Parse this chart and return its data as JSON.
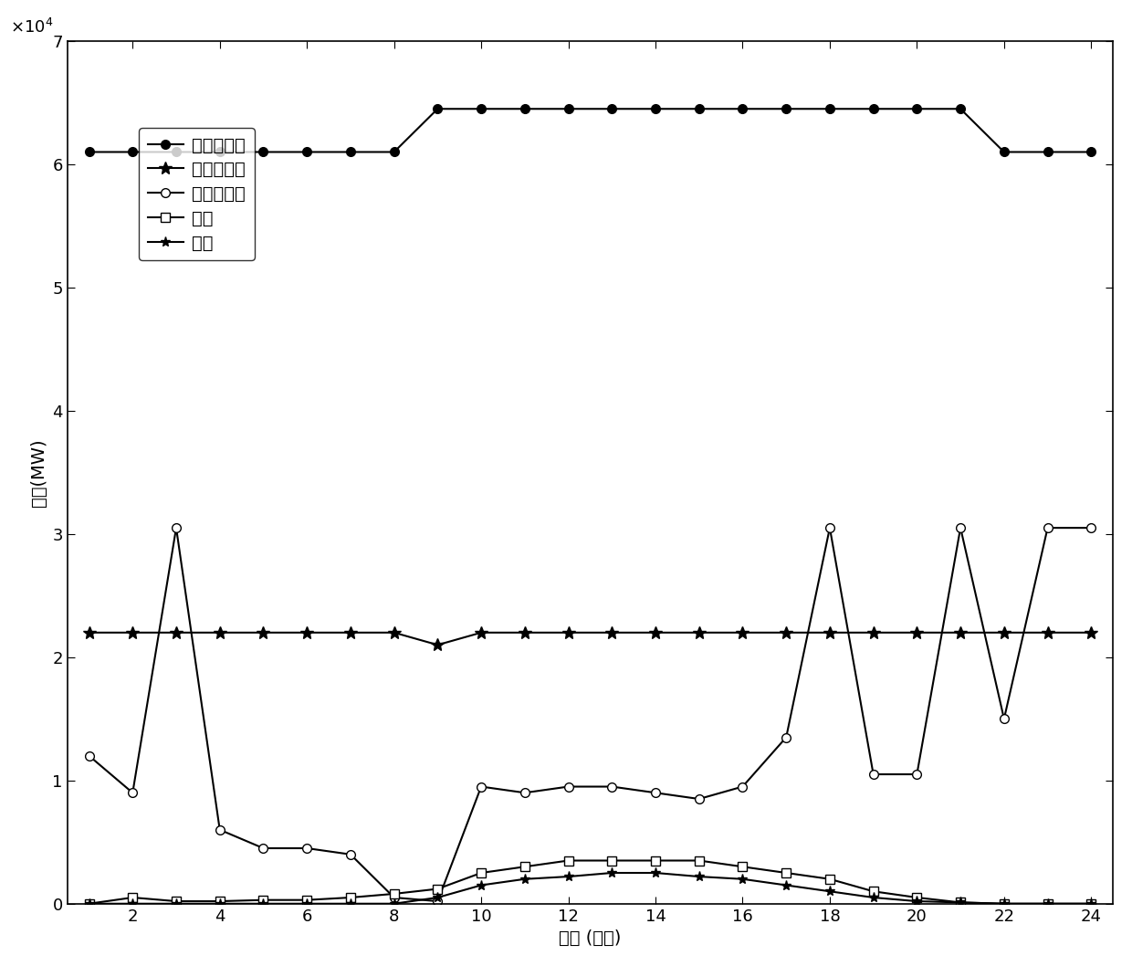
{
  "time": [
    1,
    2,
    3,
    4,
    5,
    6,
    7,
    8,
    9,
    10,
    11,
    12,
    13,
    14,
    15,
    16,
    17,
    18,
    19,
    20,
    21,
    22,
    23,
    24
  ],
  "jingliushui": [
    61000,
    61000,
    61000,
    61000,
    61000,
    61000,
    61000,
    61000,
    64500,
    64500,
    64500,
    64500,
    64500,
    64500,
    64500,
    64500,
    64500,
    64500,
    64500,
    64500,
    64500,
    61000,
    61000,
    61000
  ],
  "jijieshuai": [
    22000,
    22000,
    22000,
    22000,
    22000,
    22000,
    22000,
    22000,
    21000,
    22000,
    22000,
    22000,
    22000,
    22000,
    22000,
    22000,
    22000,
    22000,
    22000,
    22000,
    22000,
    22000,
    22000,
    22000
  ],
  "nianjieshuai": [
    12000,
    9000,
    30500,
    6000,
    4500,
    4500,
    4000,
    500,
    200,
    9500,
    9000,
    9500,
    9500,
    9000,
    8500,
    9500,
    13500,
    30500,
    10500,
    10500,
    30500,
    15000,
    30500,
    30500
  ],
  "fengdian": [
    0,
    500,
    200,
    200,
    300,
    300,
    500,
    800,
    1200,
    2500,
    3000,
    3500,
    3500,
    3500,
    3500,
    3000,
    2500,
    2000,
    1000,
    500,
    100,
    0,
    0,
    0
  ],
  "guangfu": [
    0,
    0,
    0,
    0,
    0,
    0,
    0,
    0,
    500,
    1500,
    2000,
    2200,
    2500,
    2500,
    2200,
    2000,
    1500,
    1000,
    500,
    200,
    100,
    0,
    0,
    0
  ],
  "ylabel": "出力(MW)",
  "xlabel": "时间 (小时)",
  "legend_labels": [
    "径流式水电",
    "季调节水电",
    "年调节水电",
    "风电",
    "光伏"
  ],
  "ylim": [
    0,
    70000
  ],
  "xlim": [
    1,
    24
  ],
  "yticks": [
    0,
    10000,
    20000,
    30000,
    40000,
    50000,
    60000,
    70000
  ],
  "xticks": [
    2,
    4,
    6,
    8,
    10,
    12,
    14,
    16,
    18,
    20,
    22,
    24
  ],
  "line_colors": [
    "black",
    "black",
    "black",
    "black",
    "black"
  ],
  "markers": [
    "o",
    "*",
    "o",
    "s",
    "*"
  ],
  "markersizes": [
    7,
    10,
    7,
    7,
    8
  ],
  "markerfacecolors": [
    "black",
    "black",
    "white",
    "white",
    "black"
  ],
  "axis_fontsize": 14,
  "tick_fontsize": 13,
  "legend_fontsize": 14
}
